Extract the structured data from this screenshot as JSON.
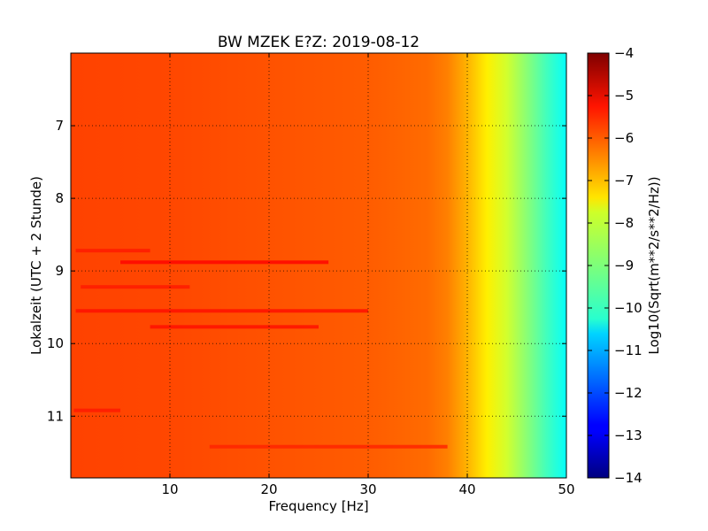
{
  "chart_data": {
    "type": "heatmap",
    "title": "BW MZEK E?Z: 2019-08-12",
    "xlabel": "Frequency [Hz]",
    "ylabel": "Lokalzeit (UTC + 2 Stunde)",
    "xlim": [
      0,
      50
    ],
    "ylim": [
      11.85,
      6.0
    ],
    "x_ticks": [
      10,
      20,
      30,
      40,
      50
    ],
    "y_ticks": [
      7,
      8,
      9,
      10,
      11
    ],
    "grid": true,
    "colorbar": {
      "label": "Log10(Sqrt(m**2/s**2/Hz))",
      "range": [
        -14,
        -4
      ],
      "ticks": [
        -4,
        -5,
        -6,
        -7,
        -8,
        -9,
        -10,
        -11,
        -12,
        -13,
        -14
      ],
      "colormap": "jet"
    },
    "spectral_profile": [
      {
        "freq": 0,
        "value": -5.9
      },
      {
        "freq": 10,
        "value": -5.95
      },
      {
        "freq": 20,
        "value": -6.05
      },
      {
        "freq": 30,
        "value": -6.15
      },
      {
        "freq": 36,
        "value": -6.3
      },
      {
        "freq": 38,
        "value": -6.5
      },
      {
        "freq": 40,
        "value": -7.0
      },
      {
        "freq": 42,
        "value": -7.6
      },
      {
        "freq": 44,
        "value": -8.2
      },
      {
        "freq": 46,
        "value": -8.9
      },
      {
        "freq": 48,
        "value": -9.6
      },
      {
        "freq": 50,
        "value": -10.2
      }
    ],
    "noise_bands": [
      {
        "time": 8.88,
        "freq_start": 5,
        "freq_end": 26,
        "value": -5.3
      },
      {
        "time": 9.55,
        "freq_start": 0.5,
        "freq_end": 30,
        "value": -5.4
      },
      {
        "time": 9.77,
        "freq_start": 8,
        "freq_end": 25,
        "value": -5.4
      },
      {
        "time": 9.22,
        "freq_start": 1,
        "freq_end": 12,
        "value": -5.5
      },
      {
        "time": 8.72,
        "freq_start": 0.5,
        "freq_end": 8,
        "value": -5.5
      },
      {
        "time": 11.42,
        "freq_start": 14,
        "freq_end": 38,
        "value": -5.6
      },
      {
        "time": 10.92,
        "freq_start": 0.3,
        "freq_end": 5,
        "value": -5.5
      }
    ]
  }
}
